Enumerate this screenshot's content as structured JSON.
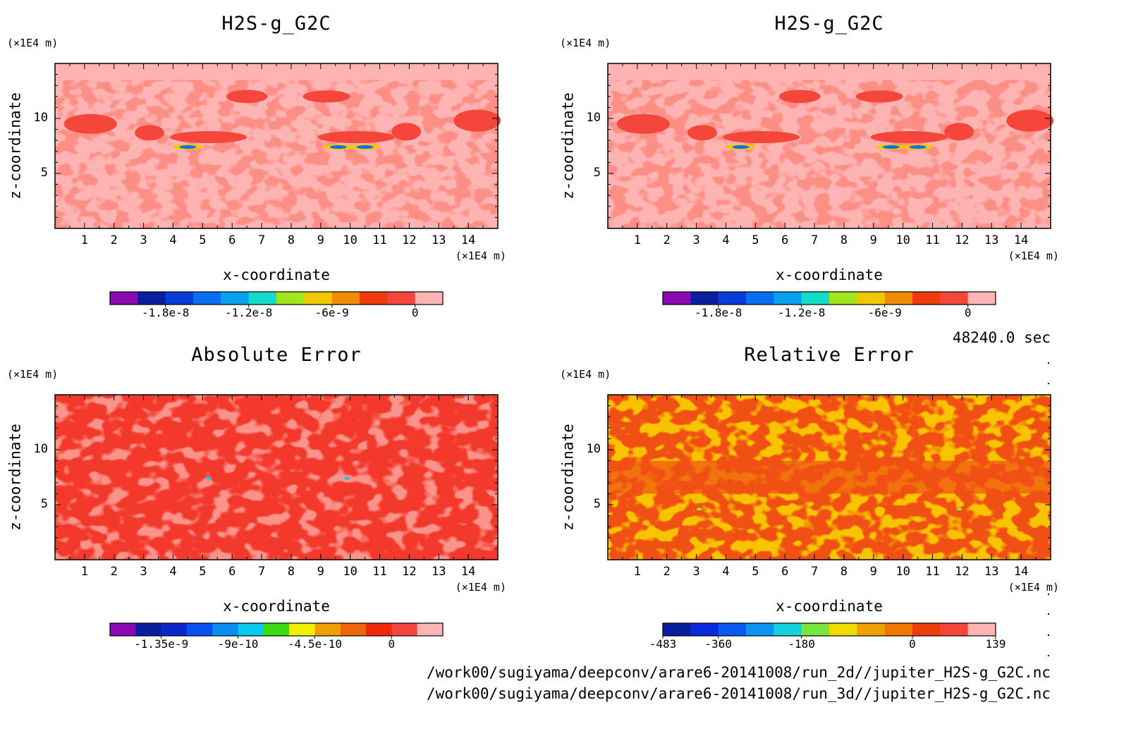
{
  "time_label": "48240.0 sec",
  "footer": {
    "line1": "/work00/sugiyama/deepconv/arare6-20141008/run_2d//jupiter_H2S-g_G2C.nc",
    "line2": "/work00/sugiyama/deepconv/arare6-20141008/run_3d//jupiter_H2S-g_G2C.nc"
  },
  "chart_data": [
    {
      "type": "heatmap",
      "title": "H2S-g_G2C",
      "xlabel": "x-coordinate",
      "ylabel": "z-coordinate",
      "x_unit": "(×1E4 m)",
      "z_unit": "(×1E4 m)",
      "xlim": [
        0,
        15
      ],
      "zlim": [
        0,
        15
      ],
      "x_ticks": [
        "1",
        "2",
        "3",
        "4",
        "5",
        "6",
        "7",
        "8",
        "9",
        "10",
        "11",
        "12",
        "13",
        "14"
      ],
      "z_ticks": [
        "5",
        "10"
      ],
      "colorbar": {
        "colors": [
          "#8a0ab2",
          "#0a1ea0",
          "#0a3cdc",
          "#0a6ef0",
          "#0aa0f0",
          "#14dcc8",
          "#a0e61e",
          "#f0c800",
          "#f08c00",
          "#f03c0a",
          "#f5463c",
          "#ffb4b4"
        ],
        "tick_labels": [
          "-1.8e-8",
          "-1.2e-8",
          "-6e-9",
          "0"
        ]
      }
    },
    {
      "type": "heatmap",
      "title": "H2S-g_G2C",
      "xlabel": "x-coordinate",
      "ylabel": "z-coordinate",
      "x_unit": "(×1E4 m)",
      "z_unit": "(×1E4 m)",
      "xlim": [
        0,
        15
      ],
      "zlim": [
        0,
        15
      ],
      "x_ticks": [
        "1",
        "2",
        "3",
        "4",
        "5",
        "6",
        "7",
        "8",
        "9",
        "10",
        "11",
        "12",
        "13",
        "14"
      ],
      "z_ticks": [
        "5",
        "10"
      ],
      "colorbar": {
        "colors": [
          "#8a0ab2",
          "#0a1ea0",
          "#0a3cdc",
          "#0a6ef0",
          "#0aa0f0",
          "#14dcc8",
          "#a0e61e",
          "#f0c800",
          "#f08c00",
          "#f03c0a",
          "#f5463c",
          "#ffb4b4"
        ],
        "tick_labels": [
          "-1.8e-8",
          "-1.2e-8",
          "-6e-9",
          "0"
        ]
      }
    },
    {
      "type": "heatmap",
      "title": "Absolute Error",
      "xlabel": "x-coordinate",
      "ylabel": "z-coordinate",
      "x_unit": "(×1E4 m)",
      "z_unit": "(×1E4 m)",
      "xlim": [
        0,
        15
      ],
      "zlim": [
        0,
        15
      ],
      "x_ticks": [
        "1",
        "2",
        "3",
        "4",
        "5",
        "6",
        "7",
        "8",
        "9",
        "10",
        "11",
        "12",
        "13",
        "14"
      ],
      "z_ticks": [
        "5",
        "10"
      ],
      "colorbar": {
        "colors": [
          "#8a0ab2",
          "#0a1ea0",
          "#0a28c8",
          "#0a50f0",
          "#0a8cf0",
          "#0ac8f0",
          "#3cdc14",
          "#f0f000",
          "#f0a000",
          "#f0640a",
          "#f0280a",
          "#f5463c",
          "#ffb4b4"
        ],
        "tick_labels": [
          "-1.35e-9",
          "-9e-10",
          "-4.5e-10",
          "0"
        ]
      }
    },
    {
      "type": "heatmap",
      "title": "Relative Error",
      "xlabel": "x-coordinate",
      "ylabel": "z-coordinate",
      "x_unit": "(×1E4 m)",
      "z_unit": "(×1E4 m)",
      "xlim": [
        0,
        15
      ],
      "zlim": [
        0,
        15
      ],
      "x_ticks": [
        "1",
        "2",
        "3",
        "4",
        "5",
        "6",
        "7",
        "8",
        "9",
        "10",
        "11",
        "12",
        "13",
        "14"
      ],
      "z_ticks": [
        "5",
        "10"
      ],
      "colorbar": {
        "colors": [
          "#0a1ea0",
          "#0a28dc",
          "#0a5af0",
          "#0a96f0",
          "#14d2dc",
          "#78e63c",
          "#f0dc00",
          "#f0a000",
          "#f07800",
          "#f03c0a",
          "#f5463c",
          "#ffb4b4"
        ],
        "tick_labels": [
          "-483",
          "-360",
          "-180",
          "0",
          "139"
        ]
      }
    }
  ]
}
